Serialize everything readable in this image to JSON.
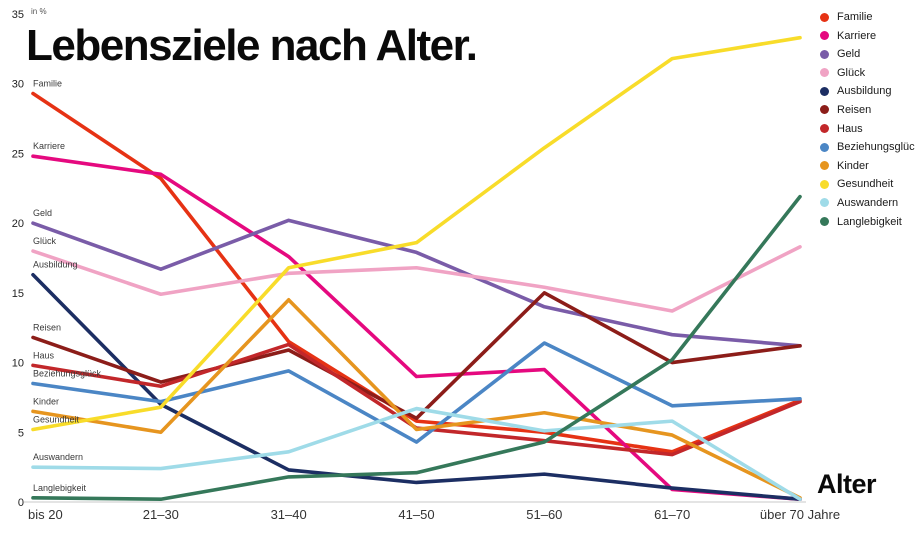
{
  "title": "Lebensziele nach Alter.",
  "y_axis_note": "in %",
  "x_axis_label": "Alter",
  "chart_data": {
    "type": "line",
    "title": "Lebensziele nach Alter.",
    "xlabel": "Alter",
    "ylabel": "in %",
    "ylim": [
      0,
      35
    ],
    "yticks": [
      0,
      5,
      10,
      15,
      20,
      25,
      30,
      35
    ],
    "grid": false,
    "legend_position": "top-right",
    "categories": [
      "bis 20",
      "21–30",
      "31–40",
      "41–50",
      "51–60",
      "61–70",
      "über 70 Jahre"
    ],
    "series": [
      {
        "name": "Familie",
        "color": "#e63214",
        "values": [
          29.3,
          23.2,
          11.5,
          5.8,
          5.0,
          3.6,
          7.3
        ]
      },
      {
        "name": "Karriere",
        "color": "#e5097f",
        "values": [
          24.8,
          23.5,
          17.6,
          9.0,
          9.5,
          0.9,
          0.2
        ]
      },
      {
        "name": "Geld",
        "color": "#7a5ca8",
        "values": [
          20.0,
          16.7,
          20.2,
          17.9,
          14.0,
          12.0,
          11.2
        ]
      },
      {
        "name": "Glück",
        "color": "#f0a3c4",
        "values": [
          18.0,
          14.9,
          16.4,
          16.8,
          15.4,
          13.7,
          18.3
        ]
      },
      {
        "name": "Ausbildung",
        "color": "#1c2e63",
        "values": [
          16.3,
          7.0,
          2.3,
          1.4,
          2.0,
          1.0,
          0.2
        ]
      },
      {
        "name": "Reisen",
        "color": "#8c1d19",
        "values": [
          11.8,
          8.6,
          10.9,
          6.0,
          15.0,
          10.0,
          11.2
        ]
      },
      {
        "name": "Haus",
        "color": "#c2272a",
        "values": [
          9.8,
          8.3,
          11.3,
          5.3,
          4.4,
          3.4,
          7.2
        ]
      },
      {
        "name": "Beziehungsglück",
        "color": "#4b86c5",
        "values": [
          8.5,
          7.2,
          9.4,
          4.3,
          11.4,
          6.9,
          7.4
        ]
      },
      {
        "name": "Kinder",
        "color": "#e6951f",
        "values": [
          6.5,
          5.0,
          14.5,
          5.2,
          6.4,
          4.8,
          0.3
        ]
      },
      {
        "name": "Gesundheit",
        "color": "#f8dc2a",
        "values": [
          5.2,
          6.8,
          16.8,
          18.6,
          25.4,
          31.8,
          33.3
        ]
      },
      {
        "name": "Auswandern",
        "color": "#9fdbe8",
        "values": [
          2.5,
          2.4,
          3.6,
          6.7,
          5.1,
          5.8,
          0.2
        ]
      },
      {
        "name": "Langlebigkeit",
        "color": "#35785a",
        "values": [
          0.3,
          0.2,
          1.8,
          2.1,
          4.3,
          10.2,
          21.9
        ]
      }
    ]
  }
}
